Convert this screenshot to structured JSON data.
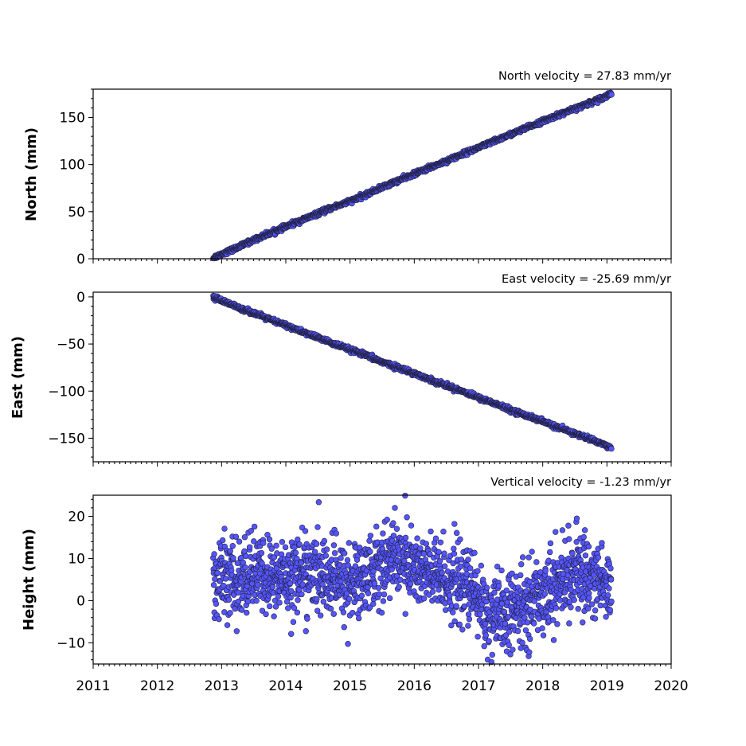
{
  "chart_data": {
    "type": "scatter",
    "x_axis": {
      "label": "",
      "xlim": [
        2011,
        2020
      ],
      "ticks": [
        {
          "value": 2011,
          "label": "2011"
        },
        {
          "value": 2012,
          "label": "2012"
        },
        {
          "value": 2013,
          "label": "2013"
        },
        {
          "value": 2014,
          "label": "2014"
        },
        {
          "value": 2015,
          "label": "2015"
        },
        {
          "value": 2016,
          "label": "2016"
        },
        {
          "value": 2017,
          "label": "2017"
        },
        {
          "value": 2018,
          "label": "2018"
        },
        {
          "value": 2019,
          "label": "2019"
        },
        {
          "value": 2020,
          "label": "2020"
        }
      ]
    },
    "marker_color": "#5555ff",
    "marker_edge_color": "#222244",
    "panels": [
      {
        "id": "north",
        "ylabel": "North (mm)",
        "annotation": "North velocity = 27.83 mm/yr",
        "ylim": [
          0,
          180
        ],
        "yticks": [
          {
            "value": 0,
            "label": "0"
          },
          {
            "value": 50,
            "label": "50"
          },
          {
            "value": 100,
            "label": "100"
          },
          {
            "value": 150,
            "label": "150"
          }
        ],
        "x": [
          2012.87,
          2013.0,
          2013.25,
          2013.5,
          2013.75,
          2014.0,
          2014.25,
          2014.5,
          2014.75,
          2015.0,
          2015.25,
          2015.5,
          2015.75,
          2016.0,
          2016.25,
          2016.5,
          2016.75,
          2017.0,
          2017.25,
          2017.5,
          2017.75,
          2018.0,
          2018.25,
          2018.5,
          2018.75,
          2019.0,
          2019.07
        ],
        "y": [
          1,
          5,
          12,
          20,
          27,
          34,
          41,
          48,
          55,
          61,
          68,
          76,
          83,
          90,
          97,
          104,
          111,
          118,
          125,
          132,
          139,
          146,
          153,
          159,
          166,
          173,
          176
        ]
      },
      {
        "id": "east",
        "ylabel": "East (mm)",
        "annotation": "East velocity = -25.69 mm/yr",
        "ylim": [
          -175,
          5
        ],
        "yticks": [
          {
            "value": 0,
            "label": "0"
          },
          {
            "value": -50,
            "label": "−50"
          },
          {
            "value": -100,
            "label": "−100"
          },
          {
            "value": -150,
            "label": "−150"
          }
        ],
        "x": [
          2012.87,
          2013.0,
          2013.25,
          2013.5,
          2013.75,
          2014.0,
          2014.25,
          2014.5,
          2014.75,
          2015.0,
          2015.25,
          2015.5,
          2015.75,
          2016.0,
          2016.25,
          2016.5,
          2016.75,
          2017.0,
          2017.25,
          2017.5,
          2017.75,
          2018.0,
          2018.25,
          2018.5,
          2018.75,
          2019.0,
          2019.07
        ],
        "y": [
          0,
          -4,
          -11,
          -17,
          -24,
          -30,
          -37,
          -43,
          -50,
          -56,
          -62,
          -69,
          -75,
          -81,
          -88,
          -94,
          -100,
          -107,
          -113,
          -120,
          -126,
          -132,
          -139,
          -145,
          -151,
          -158,
          -161
        ]
      },
      {
        "id": "height",
        "ylabel": "Height (mm)",
        "annotation": "Vertical velocity = -1.23 mm/yr",
        "ylim": [
          -15,
          25
        ],
        "yticks": [
          {
            "value": -10,
            "label": "−10"
          },
          {
            "value": 0,
            "label": "0"
          },
          {
            "value": 10,
            "label": "10"
          },
          {
            "value": 20,
            "label": "20"
          }
        ],
        "x": [
          2012.87,
          2013.0,
          2013.25,
          2013.5,
          2013.75,
          2014.0,
          2014.25,
          2014.5,
          2014.75,
          2015.0,
          2015.25,
          2015.5,
          2015.75,
          2016.0,
          2016.25,
          2016.5,
          2016.75,
          2017.0,
          2017.1,
          2017.25,
          2017.5,
          2017.75,
          2018.0,
          2018.25,
          2018.5,
          2018.75,
          2019.0,
          2019.07
        ],
        "y": [
          5,
          6,
          4,
          7,
          5,
          6,
          7,
          6,
          5,
          4,
          6,
          9,
          11,
          8,
          6,
          5,
          4,
          1,
          -3,
          -4,
          -3,
          -1,
          2,
          4,
          7,
          6,
          4,
          2
        ]
      }
    ]
  }
}
